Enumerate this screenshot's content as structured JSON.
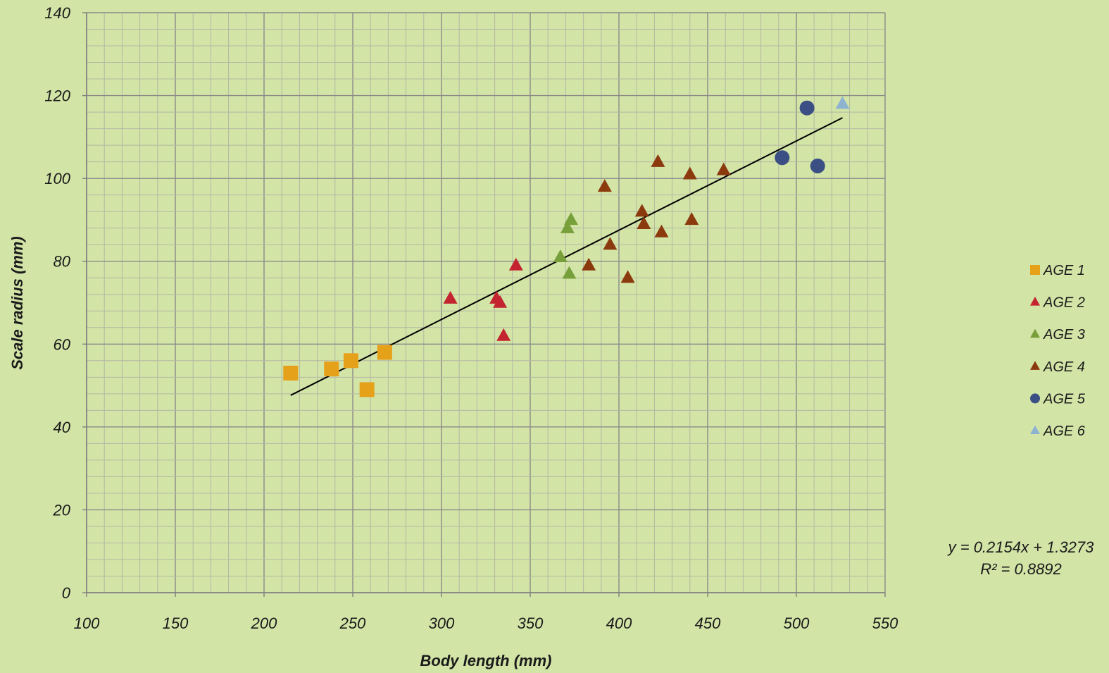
{
  "chart_data": {
    "type": "scatter",
    "xlabel": "Body length (mm)",
    "ylabel": "Scale radius (mm)",
    "xlim": [
      100,
      550
    ],
    "ylim": [
      0,
      140
    ],
    "x_ticks": [
      100,
      150,
      200,
      250,
      300,
      350,
      400,
      450,
      500,
      550
    ],
    "y_ticks": [
      0,
      20,
      40,
      60,
      80,
      100,
      120,
      140
    ],
    "grid": true,
    "legend_position": "right",
    "series": [
      {
        "name": "AGE 1",
        "marker": "square",
        "color": "#e6a11a",
        "points": [
          [
            215,
            53
          ],
          [
            238,
            54
          ],
          [
            249,
            56
          ],
          [
            258,
            49
          ],
          [
            268,
            58
          ]
        ]
      },
      {
        "name": "AGE 2",
        "marker": "triangle",
        "color": "#c4242f",
        "points": [
          [
            305,
            71
          ],
          [
            331,
            71
          ],
          [
            333,
            70
          ],
          [
            335,
            62
          ],
          [
            342,
            79
          ]
        ]
      },
      {
        "name": "AGE 3",
        "marker": "triangle",
        "color": "#77a03a",
        "points": [
          [
            367,
            81
          ],
          [
            371,
            88
          ],
          [
            372,
            77
          ],
          [
            373,
            90
          ]
        ]
      },
      {
        "name": "AGE 4",
        "marker": "triangle",
        "color": "#8b3a0e",
        "points": [
          [
            383,
            79
          ],
          [
            392,
            98
          ],
          [
            395,
            84
          ],
          [
            405,
            76
          ],
          [
            413,
            92
          ],
          [
            414,
            89
          ],
          [
            422,
            104
          ],
          [
            424,
            87
          ],
          [
            440,
            101
          ],
          [
            441,
            90
          ],
          [
            459,
            102
          ]
        ]
      },
      {
        "name": "AGE 5",
        "marker": "circle",
        "color": "#3b4f84",
        "points": [
          [
            492,
            105
          ],
          [
            506,
            117
          ],
          [
            512,
            103
          ]
        ]
      },
      {
        "name": "AGE 6",
        "marker": "triangle",
        "color": "#8db3d1",
        "points": [
          [
            526,
            118
          ]
        ]
      }
    ],
    "trendline": {
      "slope": 0.2154,
      "intercept": 1.3273,
      "x_range": [
        215,
        526
      ],
      "color": "#000000",
      "equation": "y = 0.2154x + 1.3273",
      "r_squared": "R² = 0.8892"
    }
  }
}
